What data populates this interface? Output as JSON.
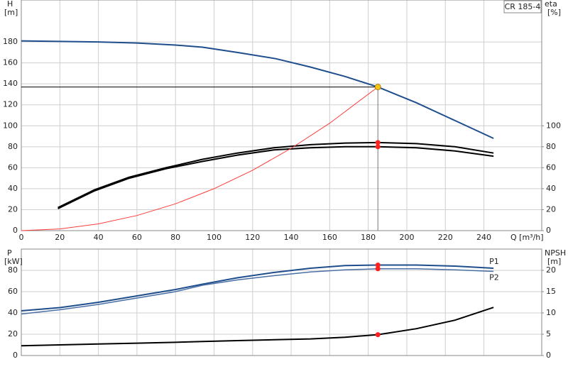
{
  "chart_data": [
    {
      "type": "line",
      "title": "CR 185-4",
      "x_label": "Q [m³/h]",
      "y_label": "H",
      "y_unit": "[m]",
      "y2_label": "eta",
      "y2_unit": "[%]",
      "xlim": [
        0,
        270
      ],
      "xticks": [
        0,
        20,
        40,
        60,
        80,
        100,
        120,
        140,
        160,
        180,
        200,
        220,
        240
      ],
      "ylim": [
        0,
        220
      ],
      "yticks": [
        0,
        20,
        40,
        60,
        80,
        100,
        120,
        140,
        160,
        180
      ],
      "y2lim": [
        0,
        220
      ],
      "y2ticks": [
        0,
        20,
        40,
        60,
        80,
        100
      ],
      "grid": true,
      "series": [
        {
          "color": "#1f4e8c",
          "width": 2,
          "axis": "y",
          "x": [
            0,
            20,
            40,
            60,
            80,
            94,
            112,
            132,
            150,
            168,
            185,
            205,
            225,
            245
          ],
          "values": [
            181,
            180.5,
            180,
            179,
            177,
            175,
            170,
            164,
            156,
            147,
            137,
            122,
            105,
            88
          ]
        },
        {
          "color": "#000000",
          "width": 2,
          "axis": "y2",
          "x": [
            19,
            38,
            56,
            75,
            94,
            112,
            131,
            150,
            168,
            185,
            205,
            225,
            245
          ],
          "values": [
            22,
            39,
            51,
            60,
            68,
            74,
            79,
            82,
            83.5,
            84,
            83,
            80,
            74
          ]
        },
        {
          "color": "#000000",
          "width": 2,
          "axis": "y2",
          "x": [
            19,
            38,
            56,
            75,
            94,
            112,
            131,
            150,
            168,
            185,
            205,
            225,
            245
          ],
          "values": [
            21,
            38,
            50,
            59,
            66,
            72,
            77,
            79,
            80,
            80,
            79,
            76,
            71
          ]
        },
        {
          "color": "#ff3b3b",
          "width": 1,
          "axis": "y",
          "x": [
            0,
            20,
            40,
            60,
            80,
            100,
            120,
            140,
            160,
            185
          ],
          "values": [
            0,
            1.6,
            6.4,
            14.4,
            25.6,
            40,
            57.6,
            78.5,
            102.5,
            137
          ]
        }
      ],
      "points": [
        {
          "x": 185,
          "y": 137,
          "axis": "y",
          "color": "#f5c518",
          "crosshair": true
        },
        {
          "x": 185,
          "y": 84,
          "axis": "y2",
          "color": "#ff2020"
        },
        {
          "x": 185,
          "y": 80,
          "axis": "y2",
          "color": "#ff2020"
        }
      ]
    },
    {
      "type": "line",
      "y_label": "P",
      "y_unit": "[kW]",
      "y2_label": "NPSH",
      "y2_unit": "[m]",
      "ylim": [
        0,
        100
      ],
      "yticks": [
        0,
        20,
        40,
        60,
        80
      ],
      "y2lim": [
        0,
        25
      ],
      "y2ticks": [
        0,
        5,
        10,
        15,
        20
      ],
      "grid": true,
      "series": [
        {
          "name": "P1",
          "color": "#1f4e8c",
          "width": 2,
          "axis": "y",
          "x": [
            0,
            20,
            40,
            60,
            80,
            94,
            112,
            131,
            150,
            168,
            185,
            205,
            225,
            245
          ],
          "values": [
            42,
            45,
            50,
            56,
            62,
            67,
            73,
            78,
            82,
            84.5,
            85,
            85,
            84,
            82
          ]
        },
        {
          "name": "P2",
          "color": "#4a6fa5",
          "width": 1.5,
          "axis": "y",
          "x": [
            0,
            20,
            40,
            60,
            80,
            94,
            112,
            131,
            150,
            168,
            185,
            205,
            225,
            245
          ],
          "values": [
            39,
            43,
            48,
            54,
            60,
            66,
            71,
            75,
            78.5,
            80.5,
            81.5,
            81.5,
            80.5,
            79
          ]
        },
        {
          "color": "#000000",
          "width": 2,
          "axis": "y2",
          "x": [
            0,
            20,
            40,
            60,
            80,
            94,
            112,
            131,
            150,
            168,
            185,
            205,
            225,
            245
          ],
          "values": [
            2.3,
            2.5,
            2.7,
            2.9,
            3.1,
            3.3,
            3.5,
            3.7,
            3.9,
            4.3,
            4.9,
            6.3,
            8.3,
            11.3
          ]
        }
      ],
      "points": [
        {
          "x": 185,
          "y": 85,
          "axis": "y",
          "color": "#ff2020"
        },
        {
          "x": 185,
          "y": 81.5,
          "axis": "y",
          "color": "#ff2020"
        },
        {
          "x": 185,
          "y": 4.9,
          "axis": "y2",
          "color": "#ff2020"
        }
      ]
    }
  ]
}
